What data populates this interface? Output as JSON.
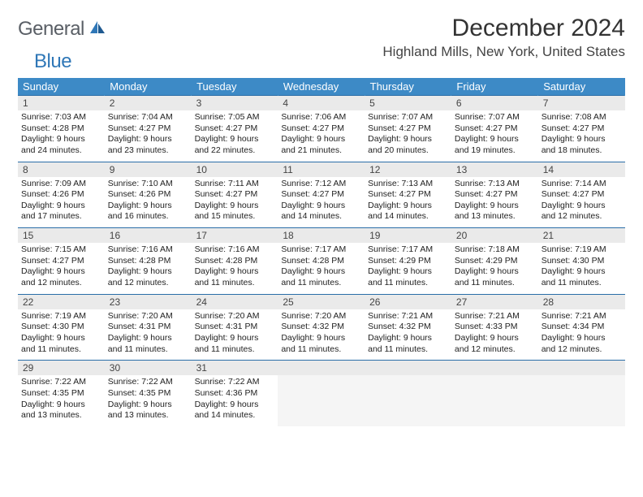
{
  "brand": {
    "part1": "General",
    "part2": "Blue"
  },
  "title": "December 2024",
  "location": "Highland Mills, New York, United States",
  "colors": {
    "header_bg": "#3d8ac6",
    "header_text": "#ffffff",
    "rule": "#2a6ea8",
    "daynum_bg": "#eaeaea",
    "logo_gray": "#5a5f66",
    "logo_blue": "#2f77b7"
  },
  "weekdays": [
    "Sunday",
    "Monday",
    "Tuesday",
    "Wednesday",
    "Thursday",
    "Friday",
    "Saturday"
  ],
  "weeks": [
    [
      {
        "n": "1",
        "sr": "7:03 AM",
        "ss": "4:28 PM",
        "dlh": "9",
        "dlm": "24"
      },
      {
        "n": "2",
        "sr": "7:04 AM",
        "ss": "4:27 PM",
        "dlh": "9",
        "dlm": "23"
      },
      {
        "n": "3",
        "sr": "7:05 AM",
        "ss": "4:27 PM",
        "dlh": "9",
        "dlm": "22"
      },
      {
        "n": "4",
        "sr": "7:06 AM",
        "ss": "4:27 PM",
        "dlh": "9",
        "dlm": "21"
      },
      {
        "n": "5",
        "sr": "7:07 AM",
        "ss": "4:27 PM",
        "dlh": "9",
        "dlm": "20"
      },
      {
        "n": "6",
        "sr": "7:07 AM",
        "ss": "4:27 PM",
        "dlh": "9",
        "dlm": "19"
      },
      {
        "n": "7",
        "sr": "7:08 AM",
        "ss": "4:27 PM",
        "dlh": "9",
        "dlm": "18"
      }
    ],
    [
      {
        "n": "8",
        "sr": "7:09 AM",
        "ss": "4:26 PM",
        "dlh": "9",
        "dlm": "17"
      },
      {
        "n": "9",
        "sr": "7:10 AM",
        "ss": "4:26 PM",
        "dlh": "9",
        "dlm": "16"
      },
      {
        "n": "10",
        "sr": "7:11 AM",
        "ss": "4:27 PM",
        "dlh": "9",
        "dlm": "15"
      },
      {
        "n": "11",
        "sr": "7:12 AM",
        "ss": "4:27 PM",
        "dlh": "9",
        "dlm": "14"
      },
      {
        "n": "12",
        "sr": "7:13 AM",
        "ss": "4:27 PM",
        "dlh": "9",
        "dlm": "14"
      },
      {
        "n": "13",
        "sr": "7:13 AM",
        "ss": "4:27 PM",
        "dlh": "9",
        "dlm": "13"
      },
      {
        "n": "14",
        "sr": "7:14 AM",
        "ss": "4:27 PM",
        "dlh": "9",
        "dlm": "12"
      }
    ],
    [
      {
        "n": "15",
        "sr": "7:15 AM",
        "ss": "4:27 PM",
        "dlh": "9",
        "dlm": "12"
      },
      {
        "n": "16",
        "sr": "7:16 AM",
        "ss": "4:28 PM",
        "dlh": "9",
        "dlm": "12"
      },
      {
        "n": "17",
        "sr": "7:16 AM",
        "ss": "4:28 PM",
        "dlh": "9",
        "dlm": "11"
      },
      {
        "n": "18",
        "sr": "7:17 AM",
        "ss": "4:28 PM",
        "dlh": "9",
        "dlm": "11"
      },
      {
        "n": "19",
        "sr": "7:17 AM",
        "ss": "4:29 PM",
        "dlh": "9",
        "dlm": "11"
      },
      {
        "n": "20",
        "sr": "7:18 AM",
        "ss": "4:29 PM",
        "dlh": "9",
        "dlm": "11"
      },
      {
        "n": "21",
        "sr": "7:19 AM",
        "ss": "4:30 PM",
        "dlh": "9",
        "dlm": "11"
      }
    ],
    [
      {
        "n": "22",
        "sr": "7:19 AM",
        "ss": "4:30 PM",
        "dlh": "9",
        "dlm": "11"
      },
      {
        "n": "23",
        "sr": "7:20 AM",
        "ss": "4:31 PM",
        "dlh": "9",
        "dlm": "11"
      },
      {
        "n": "24",
        "sr": "7:20 AM",
        "ss": "4:31 PM",
        "dlh": "9",
        "dlm": "11"
      },
      {
        "n": "25",
        "sr": "7:20 AM",
        "ss": "4:32 PM",
        "dlh": "9",
        "dlm": "11"
      },
      {
        "n": "26",
        "sr": "7:21 AM",
        "ss": "4:32 PM",
        "dlh": "9",
        "dlm": "11"
      },
      {
        "n": "27",
        "sr": "7:21 AM",
        "ss": "4:33 PM",
        "dlh": "9",
        "dlm": "12"
      },
      {
        "n": "28",
        "sr": "7:21 AM",
        "ss": "4:34 PM",
        "dlh": "9",
        "dlm": "12"
      }
    ],
    [
      {
        "n": "29",
        "sr": "7:22 AM",
        "ss": "4:35 PM",
        "dlh": "9",
        "dlm": "13"
      },
      {
        "n": "30",
        "sr": "7:22 AM",
        "ss": "4:35 PM",
        "dlh": "9",
        "dlm": "13"
      },
      {
        "n": "31",
        "sr": "7:22 AM",
        "ss": "4:36 PM",
        "dlh": "9",
        "dlm": "14"
      },
      null,
      null,
      null,
      null
    ]
  ],
  "labels": {
    "sunrise": "Sunrise:",
    "sunset": "Sunset:",
    "daylight": "Daylight:",
    "hours": "hours",
    "and": "and",
    "minutes": "minutes."
  }
}
